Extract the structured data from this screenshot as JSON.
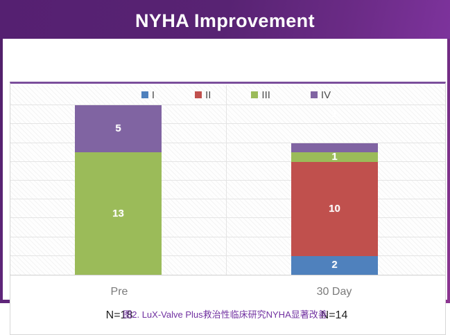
{
  "page": {
    "title": "NYHA Improvement",
    "caption": "图2. LuX-Valve Plus救治性临床研究NYHA显著改善"
  },
  "chart_data": {
    "type": "bar",
    "variant": "stacked-column",
    "title": "NYHA Improvement",
    "categories": [
      "Pre",
      "30 Day"
    ],
    "category_sublabels": [
      "N=18",
      "N=14"
    ],
    "series": [
      {
        "name": "I",
        "color": "#4F81BD",
        "values": [
          0,
          2
        ]
      },
      {
        "name": "II",
        "color": "#C0504D",
        "values": [
          0,
          10
        ]
      },
      {
        "name": "III",
        "color": "#9BBB59",
        "values": [
          13,
          1
        ]
      },
      {
        "name": "IV",
        "color": "#8064A2",
        "values": [
          5,
          1
        ]
      }
    ],
    "totals": [
      18,
      14
    ],
    "ylim": [
      0,
      18
    ],
    "gridline_step": 2,
    "grid": true,
    "legend_position": "top",
    "data_labels": "inside-center-white-bold",
    "outside_labels": [
      {
        "category_index": 1,
        "series": "IV",
        "text": "1",
        "position": "above-bar"
      }
    ]
  },
  "theme": {
    "header_gradient_start": "#552071",
    "header_gradient_end": "#7D339C",
    "card_border_start": "#4F1F68",
    "card_border_end": "#8C3591",
    "panel_top_border": "#7B4E9B",
    "gridline_color": "#E4E4E4",
    "axis_label_color": "#7A7A7A",
    "sublabel_color": "#1F1F1F",
    "legend_text_color": "#4D4D4D",
    "caption_color": "#7030A0",
    "data_label_color": "#FFFFFF"
  }
}
